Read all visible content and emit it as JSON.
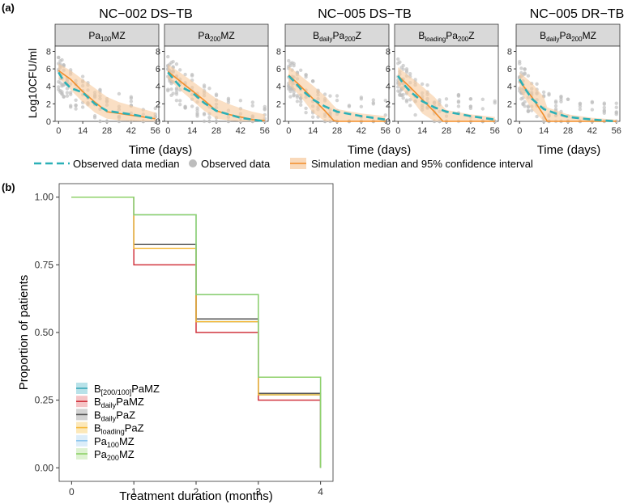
{
  "panel_a_label": "(a)",
  "panel_b_label": "(b)",
  "chart_data": [
    {
      "type": "line",
      "panel": "a",
      "ylabel": "Log10CFU/ml",
      "xlabel": "Time (days)",
      "x_ticks": [
        0,
        14,
        28,
        42,
        56
      ],
      "y_ticks": [
        0,
        2,
        4,
        6,
        8
      ],
      "ylim": [
        0,
        8.6
      ],
      "xlim": [
        -2,
        58
      ],
      "study_labels": [
        "NC−002 DS−TB",
        "NC−005 DS−TB",
        "NC−005 DR−TB"
      ],
      "facets": [
        {
          "strip": {
            "main": "Pa",
            "sub": "100",
            "rest": "MZ"
          },
          "observed_median": {
            "x": [
              0,
              3,
              7,
              14,
              21,
              28,
              42,
              56
            ],
            "y": [
              5.6,
              4.6,
              3.8,
              3.3,
              2.0,
              1.2,
              0.8,
              0.3
            ]
          },
          "sim_median": {
            "x": [
              0,
              7,
              14,
              21,
              28,
              35,
              42,
              49,
              56
            ],
            "y": [
              5.8,
              4.8,
              3.4,
              2.2,
              1.1,
              0.9,
              0.7,
              0.5,
              0.3
            ]
          },
          "sim_upper": [
            6.6,
            5.8,
            4.8,
            3.8,
            2.8,
            2.2,
            1.8,
            1.4,
            1.0
          ],
          "sim_lower": [
            5.0,
            3.6,
            2.2,
            1.0,
            0.3,
            0.1,
            0.05,
            0.0,
            0.0
          ]
        },
        {
          "strip": {
            "main": "Pa",
            "sub": "200",
            "rest": "MZ"
          },
          "observed_median": {
            "x": [
              0,
              3,
              7,
              14,
              21,
              28,
              42,
              56
            ],
            "y": [
              5.6,
              4.9,
              4.0,
              3.3,
              2.1,
              1.2,
              0.4,
              0.0
            ]
          },
          "sim_median": {
            "x": [
              0,
              7,
              14,
              21,
              28,
              35,
              42,
              49,
              56
            ],
            "y": [
              5.7,
              4.6,
              3.5,
              2.4,
              1.2,
              0.8,
              0.5,
              0.2,
              0.1
            ]
          },
          "sim_upper": [
            6.5,
            5.6,
            4.6,
            3.6,
            2.6,
            2.0,
            1.5,
            1.1,
            0.8
          ],
          "sim_lower": [
            4.9,
            3.6,
            2.4,
            1.2,
            0.3,
            0.1,
            0.0,
            0.0,
            0.0
          ]
        },
        {
          "strip": {
            "main": "B",
            "sub": "daily",
            "rest": "Pa",
            "sub2": "200",
            "rest2": "Z"
          },
          "observed_median": {
            "x": [
              0,
              3,
              7,
              14,
              21,
              28,
              42,
              56
            ],
            "y": [
              5.2,
              4.6,
              3.7,
              2.5,
              1.7,
              1.1,
              0.6,
              0.2
            ]
          },
          "sim_median": {
            "x": [
              0,
              7,
              14,
              21,
              26,
              28,
              42,
              56
            ],
            "y": [
              5.3,
              4.0,
              2.6,
              1.2,
              0.1,
              0.0,
              0.0,
              0.0
            ]
          },
          "sim_upper": [
            6.3,
            5.2,
            4.1,
            2.9,
            1.8,
            1.4,
            0.9,
            0.6
          ],
          "sim_lower": [
            4.2,
            2.8,
            1.0,
            0.0,
            0.0,
            0.0,
            0.0,
            0.0
          ]
        },
        {
          "strip": {
            "main": "B",
            "sub": "loading",
            "rest": "Pa",
            "sub2": "200",
            "rest2": "Z"
          },
          "observed_median": {
            "x": [
              0,
              3,
              7,
              14,
              21,
              28,
              42,
              56
            ],
            "y": [
              5.2,
              4.3,
              3.4,
              2.3,
              1.6,
              1.1,
              0.6,
              0.2
            ]
          },
          "sim_median": {
            "x": [
              0,
              7,
              14,
              21,
              26,
              28,
              42,
              56
            ],
            "y": [
              5.2,
              3.9,
              2.5,
              1.1,
              0.0,
              0.0,
              0.0,
              0.0
            ]
          },
          "sim_upper": [
            6.2,
            5.1,
            4.0,
            2.8,
            1.7,
            1.3,
            0.8,
            0.5
          ],
          "sim_lower": [
            4.1,
            2.7,
            0.9,
            0.0,
            0.0,
            0.0,
            0.0,
            0.0
          ]
        },
        {
          "strip": {
            "main": "B",
            "sub": "daily",
            "rest": "Pa",
            "sub2": "200",
            "rest2": "MZ"
          },
          "observed_median": {
            "x": [
              0,
              3,
              7,
              14,
              21,
              28,
              42,
              56
            ],
            "y": [
              4.8,
              3.8,
              2.6,
              1.4,
              0.9,
              0.5,
              0.2,
              0.0
            ]
          },
          "sim_median": {
            "x": [
              0,
              7,
              14,
              16,
              28,
              42,
              56
            ],
            "y": [
              4.6,
              2.8,
              0.7,
              0.0,
              0.0,
              0.0,
              0.0
            ]
          },
          "sim_upper": [
            5.6,
            4.4,
            2.8,
            1.6,
            0.8,
            0.4,
            0.2
          ],
          "sim_lower": [
            3.6,
            1.4,
            0.0,
            0.0,
            0.0,
            0.0,
            0.0
          ]
        }
      ],
      "legend": [
        {
          "key": "observed_median",
          "label": "Observed data median",
          "color": "#2bb0b7"
        },
        {
          "key": "observed_data",
          "label": "Observed data",
          "color": "#bdbdbd"
        },
        {
          "key": "simulation",
          "label": "Simulation median and 95% confidence interval",
          "color": "#f28e2b"
        }
      ]
    },
    {
      "type": "line",
      "panel": "b",
      "step": true,
      "xlabel": "Treatment duration (months)",
      "ylabel": "Proportion of patients",
      "x_ticks": [
        0,
        1,
        2,
        3,
        4
      ],
      "y_ticks": [
        "0.00",
        "0.25",
        "0.50",
        "0.75",
        "1.00"
      ],
      "xlim": [
        -0.2,
        4.2
      ],
      "ylim": [
        -0.05,
        1.05
      ],
      "series": [
        {
          "name": "B[200/100]PaMZ",
          "label": {
            "main": "B",
            "sub": "[200/100]",
            "rest": "PaMZ"
          },
          "color": "#3aa9b8",
          "fill": "#a6dbe3",
          "values": [
            1.0,
            0.81,
            0.54,
            0.27
          ]
        },
        {
          "name": "BdailyPaMZ",
          "label": {
            "main": "B",
            "sub": "daily",
            "rest": "PaMZ"
          },
          "color": "#d1353f",
          "fill": "#f2b5b8",
          "values": [
            1.0,
            0.75,
            0.5,
            0.25
          ]
        },
        {
          "name": "BdailyPaZ",
          "label": {
            "main": "B",
            "sub": "daily",
            "rest": "PaZ"
          },
          "color": "#555555",
          "fill": "#c8c8c8",
          "values": [
            1.0,
            0.825,
            0.55,
            0.275
          ]
        },
        {
          "name": "BloadingPaZ",
          "label": {
            "main": "B",
            "sub": "loading",
            "rest": "PaZ"
          },
          "color": "#f6b93b",
          "fill": "#fbe2a8",
          "values": [
            1.0,
            0.81,
            0.54,
            0.27
          ]
        },
        {
          "name": "Pa100MZ",
          "label": {
            "main": "Pa",
            "sub": "100",
            "rest": "MZ"
          },
          "color": "#8ec7ef",
          "fill": "#d3e9f8",
          "values": [
            1.0,
            0.935,
            0.64,
            0.335
          ]
        },
        {
          "name": "Pa200MZ",
          "label": {
            "main": "Pa",
            "sub": "200",
            "rest": "MZ"
          },
          "color": "#8fd16a",
          "fill": "#d5efc5",
          "values": [
            1.0,
            0.935,
            0.64,
            0.335
          ]
        }
      ]
    }
  ]
}
